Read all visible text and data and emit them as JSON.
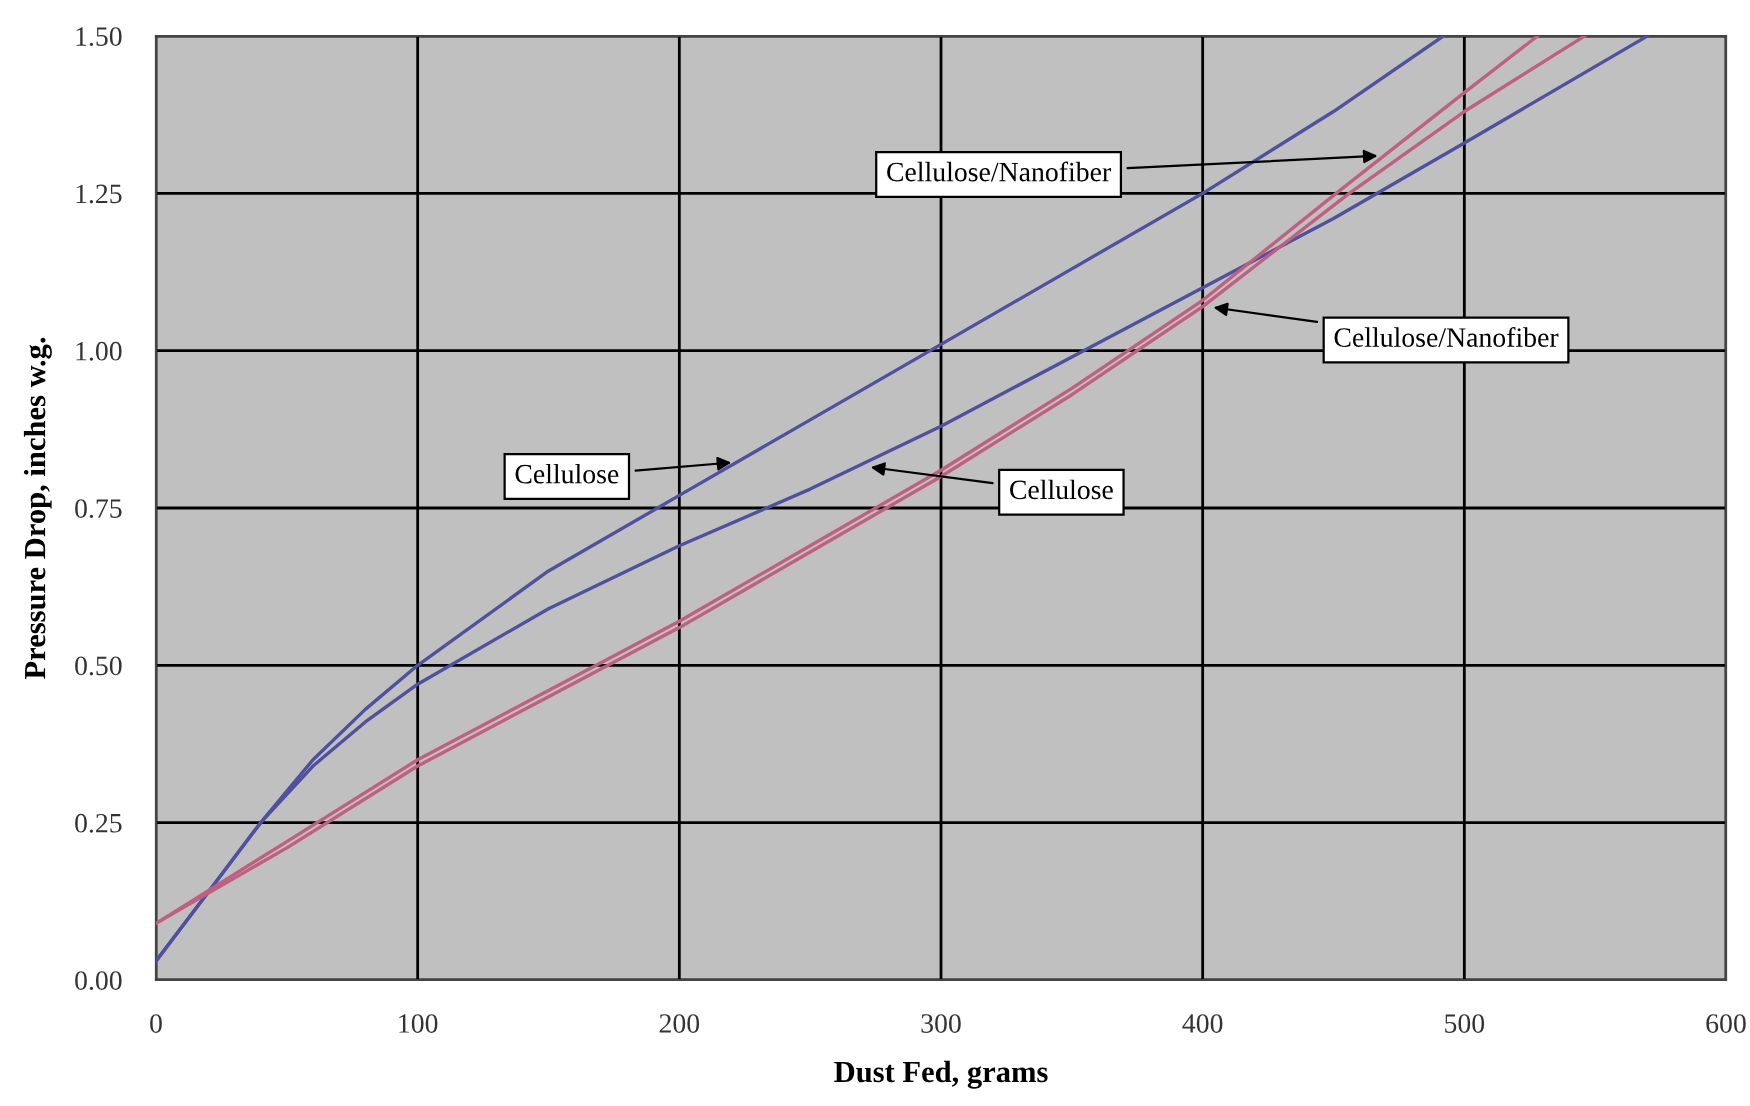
{
  "chart_data": {
    "type": "line",
    "xlabel": "Dust Fed, grams",
    "ylabel": "Pressure Drop, inches w.g.",
    "xlim": [
      0,
      600
    ],
    "xticks": [
      0,
      100,
      200,
      300,
      400,
      500,
      600
    ],
    "ylim": [
      0,
      1.5
    ],
    "yticks": [
      {
        "value": 0,
        "label": "0.00"
      },
      {
        "value": 0.25,
        "label": "0.25"
      },
      {
        "value": 0.5,
        "label": "0.50"
      },
      {
        "value": 0.75,
        "label": "0.75"
      },
      {
        "value": 1.0,
        "label": "1.00"
      },
      {
        "value": 1.25,
        "label": "1.25"
      },
      {
        "value": 1.5,
        "label": "1.50"
      }
    ],
    "grid": true,
    "legend": false,
    "marker": "none",
    "line_style": "solid",
    "series": [
      {
        "color": "#5050a0",
        "x": [
          0,
          20,
          40,
          60,
          80,
          100,
          150,
          200,
          250,
          300,
          350,
          400,
          450,
          492
        ],
        "values": [
          0.03,
          0.14,
          0.25,
          0.35,
          0.43,
          0.5,
          0.65,
          0.77,
          0.89,
          1.01,
          1.13,
          1.25,
          1.38,
          1.5
        ]
      },
      {
        "color": "#5050a0",
        "x": [
          0,
          20,
          40,
          60,
          80,
          100,
          150,
          200,
          250,
          300,
          350,
          400,
          450,
          500,
          570
        ],
        "values": [
          0.03,
          0.14,
          0.25,
          0.34,
          0.41,
          0.47,
          0.59,
          0.69,
          0.78,
          0.88,
          0.99,
          1.1,
          1.21,
          1.33,
          1.5
        ]
      },
      {
        "color": "#c06080",
        "x": [
          0,
          50,
          100,
          150,
          200,
          250,
          300,
          350,
          400,
          451,
          500,
          528
        ],
        "values": [
          0.09,
          0.22,
          0.35,
          0.46,
          0.57,
          0.69,
          0.81,
          0.94,
          1.08,
          1.25,
          1.41,
          1.5
        ]
      },
      {
        "color": "#c06080",
        "x": [
          0,
          50,
          100,
          150,
          200,
          250,
          300,
          350,
          400,
          456,
          500,
          546
        ],
        "values": [
          0.09,
          0.21,
          0.34,
          0.45,
          0.56,
          0.68,
          0.8,
          0.93,
          1.07,
          1.25,
          1.38,
          1.5
        ]
      }
    ],
    "annotations": [
      {
        "text": "Cellulose/Nanofiber",
        "x": 469,
        "y": 1.31
      },
      {
        "text": "Cellulose/Nanofiber",
        "x": 402,
        "y": 1.07
      },
      {
        "text": "Cellulose",
        "x": 222,
        "y": 0.823
      },
      {
        "text": "Cellulose",
        "x": 271,
        "y": 0.816
      }
    ]
  }
}
